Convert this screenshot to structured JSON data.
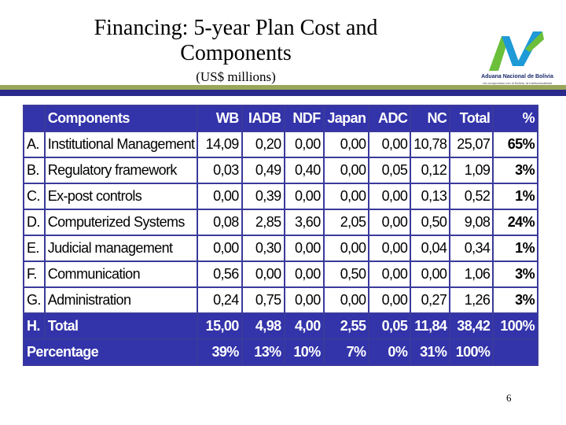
{
  "slide": {
    "title_line1": "Financing: 5-year Plan Cost and",
    "title_line2": "Components",
    "subtitle": "(US$ millions)",
    "page_number": "6"
  },
  "logo": {
    "text": "Aduana Nacional de Bolivia",
    "tagline": "Un compromiso con el Bolivia, la Institucionalidad",
    "colors": {
      "green": "#6bbf3a",
      "blue": "#1e9ad6",
      "navy": "#1a2a6c"
    }
  },
  "table": {
    "headers": [
      "",
      "Components",
      "WB",
      "IADB",
      "NDF",
      "Japan",
      "ADC",
      "NC",
      "Total",
      "%"
    ],
    "rows": [
      {
        "id": "A.",
        "name": "Institutional Management",
        "values": [
          "14,09",
          "0,20",
          "0,00",
          "0,00",
          "0,00",
          "10,78",
          "25,07"
        ],
        "pct": "65%"
      },
      {
        "id": "B.",
        "name": "Regulatory framework",
        "values": [
          "0,03",
          "0,49",
          "0,40",
          "0,00",
          "0,05",
          "0,12",
          "1,09"
        ],
        "pct": "3%"
      },
      {
        "id": "C.",
        "name": "Ex-post controls",
        "values": [
          "0,00",
          "0,39",
          "0,00",
          "0,00",
          "0,00",
          "0,13",
          "0,52"
        ],
        "pct": "1%"
      },
      {
        "id": "D.",
        "name": "Computerized Systems",
        "values": [
          "0,08",
          "2,85",
          "3,60",
          "2,05",
          "0,00",
          "0,50",
          "9,08"
        ],
        "pct": "24%"
      },
      {
        "id": "E.",
        "name": "Judicial management",
        "values": [
          "0,00",
          "0,30",
          "0,00",
          "0,00",
          "0,00",
          "0,04",
          "0,34"
        ],
        "pct": "1%"
      },
      {
        "id": "F.",
        "name": "Communication",
        "values": [
          "0,56",
          "0,00",
          "0,00",
          "0,50",
          "0,00",
          "0,00",
          "1,06"
        ],
        "pct": "3%"
      },
      {
        "id": "G.",
        "name": "Administration",
        "values": [
          "0,24",
          "0,75",
          "0,00",
          "0,00",
          "0,00",
          "0,27",
          "1,26"
        ],
        "pct": "3%"
      }
    ],
    "total": {
      "id": "H.",
      "name": "Total",
      "values": [
        "15,00",
        "4,98",
        "4,00",
        "2,55",
        "0,05",
        "11,84",
        "38,42"
      ],
      "pct": "100%"
    },
    "percentage": {
      "label": "Percentage",
      "values": [
        "39%",
        "13%",
        "10%",
        "7%",
        "0%",
        "31%",
        "100%"
      ]
    },
    "colors": {
      "header_bg": "#3333aa",
      "border": "#3a3a9c"
    }
  }
}
